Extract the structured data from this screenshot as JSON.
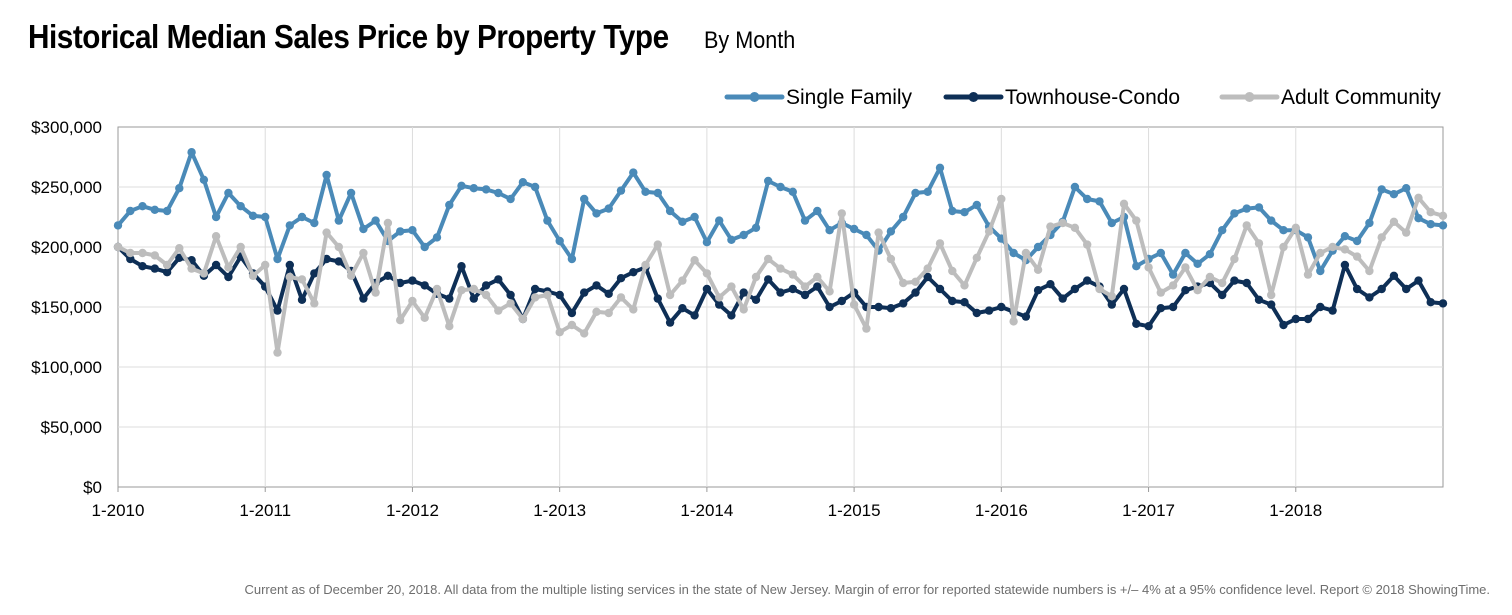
{
  "header": {
    "title": "Historical Median Sales Price by Property Type",
    "subtitle": "By Month"
  },
  "footer": {
    "note": "Current as of December 20, 2018. All data from the multiple listing services in the state of New Jersey. Margin of error for reported statewide numbers is +/– 4% at a 95% confidence level. Report © 2018 ShowingTime."
  },
  "chart_data": {
    "type": "line",
    "title": "Historical Median Sales Price by Property Type",
    "subtitle": "By Month",
    "x_start": "1-2010",
    "x_end": "11-2018",
    "x_tick_labels": [
      "1-2010",
      "1-2011",
      "1-2012",
      "1-2013",
      "1-2014",
      "1-2015",
      "1-2016",
      "1-2017",
      "1-2018"
    ],
    "y_tick_labels": [
      "$0",
      "$50,000",
      "$100,000",
      "$150,000",
      "$200,000",
      "$250,000",
      "$300,000"
    ],
    "ylim": [
      0,
      300000
    ],
    "y_step": 50000,
    "grid": "both",
    "legend_position": "top-right",
    "series": [
      {
        "name": "Single Family",
        "color": "#4a8ab8",
        "values": [
          218000,
          230000,
          234000,
          231000,
          230000,
          249000,
          279000,
          256000,
          225000,
          245000,
          234000,
          226000,
          225000,
          190000,
          218000,
          225000,
          220000,
          260000,
          222000,
          245000,
          215000,
          222000,
          205000,
          213000,
          214000,
          200000,
          208000,
          235000,
          251000,
          249000,
          248000,
          245000,
          240000,
          254000,
          250000,
          222000,
          205000,
          190000,
          240000,
          228000,
          232000,
          247000,
          262000,
          246000,
          245000,
          230000,
          221000,
          225000,
          204000,
          222000,
          206000,
          210000,
          216000,
          255000,
          250000,
          246000,
          222000,
          230000,
          214000,
          220000,
          215000,
          210000,
          197000,
          213000,
          225000,
          245000,
          246000,
          266000,
          230000,
          229000,
          235000,
          217000,
          207000,
          195000,
          189000,
          200000,
          210000,
          221000,
          250000,
          240000,
          238000,
          220000,
          225000,
          184000,
          190000,
          195000,
          177000,
          195000,
          186000,
          194000,
          214000,
          228000,
          232000,
          233000,
          222000,
          214000,
          214000,
          208000,
          180000,
          197000,
          209000,
          205000,
          220000,
          248000,
          244000,
          249000,
          224000,
          219000,
          218000
        ]
      },
      {
        "name": "Townhouse-Condo",
        "color": "#0e2f56",
        "values": [
          200000,
          190000,
          184000,
          182000,
          179000,
          191000,
          189000,
          176000,
          185000,
          175000,
          192000,
          178000,
          167000,
          147000,
          185000,
          156000,
          178000,
          190000,
          188000,
          180000,
          157000,
          170000,
          176000,
          170000,
          172000,
          168000,
          161000,
          157000,
          184000,
          157000,
          168000,
          173000,
          160000,
          140000,
          165000,
          163000,
          160000,
          145000,
          162000,
          168000,
          161000,
          174000,
          179000,
          183000,
          157000,
          137000,
          149000,
          143000,
          165000,
          152000,
          143000,
          162000,
          156000,
          173000,
          162000,
          165000,
          160000,
          167000,
          150000,
          155000,
          162000,
          150000,
          150000,
          149000,
          153000,
          162000,
          175000,
          165000,
          155000,
          154000,
          145000,
          147000,
          150000,
          146000,
          142000,
          164000,
          169000,
          157000,
          165000,
          172000,
          167000,
          152000,
          165000,
          136000,
          134000,
          149000,
          150000,
          164000,
          167000,
          170000,
          160000,
          172000,
          170000,
          156000,
          152000,
          135000,
          140000,
          140000,
          150000,
          147000,
          185000,
          165000,
          158000,
          165000,
          176000,
          165000,
          172000,
          154000,
          153000
        ]
      },
      {
        "name": "Adult Community",
        "color": "#bdbdbd",
        "values": [
          200000,
          195000,
          195000,
          193000,
          185000,
          199000,
          182000,
          178000,
          209000,
          183000,
          200000,
          176000,
          185000,
          112000,
          175000,
          173000,
          153000,
          212000,
          200000,
          176000,
          195000,
          162000,
          220000,
          139000,
          155000,
          141000,
          165000,
          134000,
          164000,
          165000,
          160000,
          147000,
          153000,
          140000,
          158000,
          160000,
          129000,
          135000,
          128000,
          146000,
          145000,
          158000,
          148000,
          185000,
          202000,
          160000,
          172000,
          189000,
          178000,
          158000,
          167000,
          148000,
          175000,
          190000,
          182000,
          177000,
          167000,
          175000,
          163000,
          228000,
          152000,
          132000,
          212000,
          190000,
          170000,
          171000,
          182000,
          203000,
          180000,
          168000,
          191000,
          213000,
          240000,
          138000,
          195000,
          181000,
          217000,
          220000,
          216000,
          202000,
          165000,
          159000,
          236000,
          222000,
          183000,
          162000,
          168000,
          183000,
          164000,
          175000,
          170000,
          190000,
          218000,
          203000,
          160000,
          200000,
          216000,
          177000,
          195000,
          200000,
          198000,
          192000,
          180000,
          208000,
          221000,
          212000,
          241000,
          229000,
          226000
        ]
      }
    ]
  }
}
